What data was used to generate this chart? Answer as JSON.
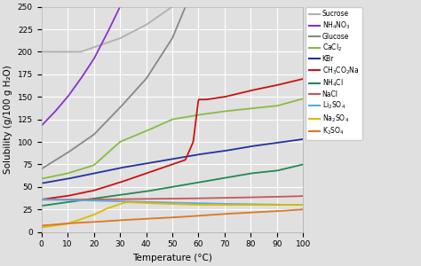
{
  "xlabel": "Temperature (°C)",
  "ylabel": "Solubility (g/100 g H₂O)",
  "xlim": [
    0,
    100
  ],
  "ylim": [
    0,
    250
  ],
  "xticks": [
    0,
    10,
    20,
    30,
    40,
    50,
    60,
    70,
    80,
    90,
    100
  ],
  "yticks": [
    0,
    25,
    50,
    75,
    100,
    125,
    150,
    175,
    200,
    225,
    250
  ],
  "background_color": "#e0e0e0",
  "grid_color": "#ffffff",
  "compounds": {
    "Sucrose": {
      "color": "#b0b0b0",
      "temp": [
        0,
        5,
        10,
        15,
        20,
        30,
        40,
        50,
        60
      ],
      "sol": [
        200,
        200,
        200,
        200,
        205,
        215,
        230,
        250,
        275
      ]
    },
    "NH4NO3": {
      "color": "#8833cc",
      "temp": [
        0,
        5,
        10,
        15,
        20,
        25,
        30
      ],
      "sol": [
        118,
        133,
        150,
        170,
        192,
        220,
        250
      ]
    },
    "Glucose": {
      "color": "#888888",
      "temp": [
        0,
        10,
        20,
        30,
        40,
        50,
        55
      ],
      "sol": [
        70,
        88,
        108,
        138,
        170,
        215,
        250
      ]
    },
    "CaCl2": {
      "color": "#88bb44",
      "temp": [
        0,
        10,
        20,
        30,
        40,
        50,
        60,
        70,
        80,
        90,
        100
      ],
      "sol": [
        59,
        65,
        74,
        100,
        112,
        125,
        130,
        134,
        137,
        140,
        148
      ]
    },
    "KBr": {
      "color": "#223399",
      "temp": [
        0,
        10,
        20,
        30,
        40,
        50,
        60,
        70,
        80,
        90,
        100
      ],
      "sol": [
        54,
        59,
        65,
        71,
        76,
        81,
        86,
        90,
        95,
        99,
        103
      ]
    },
    "CH3CO2Na": {
      "color": "#cc1111",
      "temp": [
        0,
        10,
        20,
        30,
        40,
        50,
        55,
        58,
        60,
        63,
        70,
        80,
        90,
        100
      ],
      "sol": [
        36,
        40,
        46,
        55,
        65,
        75,
        80,
        100,
        147,
        147,
        150,
        157,
        163,
        170
      ]
    },
    "NH4Cl": {
      "color": "#228855",
      "temp": [
        0,
        10,
        20,
        30,
        40,
        50,
        60,
        70,
        80,
        90,
        100
      ],
      "sol": [
        29,
        33,
        37,
        41,
        45,
        50,
        55,
        60,
        65,
        68,
        75
      ]
    },
    "NaCl": {
      "color": "#cc5555",
      "temp": [
        0,
        10,
        20,
        30,
        40,
        50,
        60,
        70,
        80,
        90,
        100
      ],
      "sol": [
        35.7,
        35.8,
        36.0,
        36.3,
        36.6,
        37.0,
        37.3,
        37.8,
        38.4,
        39.0,
        39.8
      ]
    },
    "Li2SO4": {
      "color": "#55aadd",
      "temp": [
        0,
        10,
        20,
        30,
        40,
        50,
        60,
        70,
        80,
        90,
        100
      ],
      "sol": [
        36,
        35.5,
        34.8,
        34.0,
        33.2,
        32.5,
        31.8,
        31.2,
        30.7,
        30.2,
        30.0
      ]
    },
    "Na2SO4": {
      "color": "#ddbb00",
      "temp": [
        0,
        10,
        20,
        25,
        30,
        32.4,
        40,
        50,
        60,
        70,
        80,
        90,
        100
      ],
      "sol": [
        5,
        9,
        19,
        26,
        31,
        33,
        32,
        31,
        30,
        30,
        30,
        30,
        30
      ]
    },
    "K2SO4": {
      "color": "#dd7722",
      "temp": [
        0,
        10,
        20,
        30,
        40,
        50,
        60,
        70,
        80,
        90,
        100
      ],
      "sol": [
        7,
        9.5,
        11,
        13,
        14.5,
        16,
        18,
        20,
        21.5,
        23,
        25
      ]
    }
  },
  "legend_labels": {
    "Sucrose": "Sucrose",
    "NH4NO3": "NH$_4$NO$_3$",
    "Glucose": "Glucose",
    "CaCl2": "CaCl$_2$",
    "KBr": "KBr",
    "CH3CO2Na": "CH$_3$CO$_2$Na",
    "NH4Cl": "NH$_4$Cl",
    "NaCl": "NaCl",
    "Li2SO4": "Li$_2$SO$_4$",
    "Na2SO4": "Na$_2$SO$_4$",
    "K2SO4": "K$_2$SO$_4$"
  }
}
